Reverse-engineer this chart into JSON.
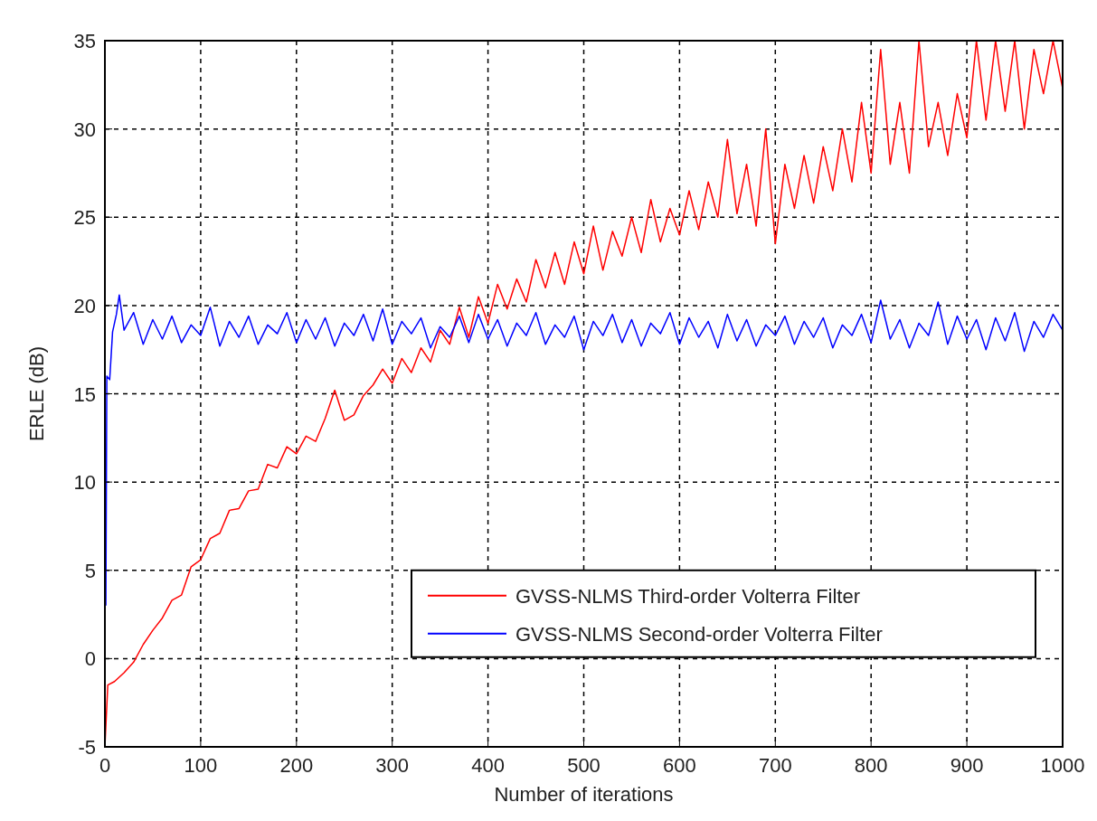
{
  "chart_data": {
    "type": "line",
    "xlabel": "Number of iterations",
    "ylabel": "ERLE (dB)",
    "xlim": [
      0,
      1000
    ],
    "ylim": [
      -5,
      35
    ],
    "xticks": [
      0,
      100,
      200,
      300,
      400,
      500,
      600,
      700,
      800,
      900,
      1000
    ],
    "yticks": [
      -5,
      0,
      5,
      10,
      15,
      20,
      25,
      30,
      35
    ],
    "grid": true,
    "legend": "bottom right",
    "line_style": "solid",
    "marker": "none",
    "series": [
      {
        "name": "GVSS-NLMS Third-order Volterra Filter",
        "color": "#ff0000",
        "x": [
          0,
          3,
          10,
          20,
          30,
          40,
          50,
          60,
          70,
          80,
          90,
          100,
          110,
          120,
          130,
          140,
          150,
          160,
          170,
          180,
          190,
          200,
          210,
          220,
          230,
          240,
          250,
          260,
          270,
          280,
          290,
          300,
          310,
          320,
          330,
          340,
          350,
          360,
          370,
          380,
          390,
          400,
          410,
          420,
          430,
          440,
          450,
          460,
          470,
          480,
          490,
          500,
          510,
          520,
          530,
          540,
          550,
          560,
          570,
          580,
          590,
          600,
          610,
          620,
          630,
          640,
          650,
          660,
          670,
          680,
          690,
          700,
          710,
          720,
          730,
          740,
          750,
          760,
          770,
          780,
          790,
          800,
          810,
          820,
          830,
          840,
          850,
          860,
          870,
          880,
          890,
          900,
          910,
          920,
          930,
          940,
          950,
          960,
          970,
          980,
          990,
          1000
        ],
        "values": [
          -5,
          -1.5,
          -1.3,
          -0.8,
          -0.2,
          0.8,
          1.6,
          2.3,
          3.3,
          3.6,
          5.2,
          5.6,
          6.8,
          7.1,
          8.4,
          8.5,
          9.5,
          9.6,
          11,
          10.8,
          12,
          11.6,
          12.6,
          12.3,
          13.6,
          15.2,
          13.5,
          13.8,
          14.9,
          15.5,
          16.4,
          15.6,
          17,
          16.2,
          17.6,
          16.8,
          18.6,
          17.8,
          19.9,
          18.2,
          20.5,
          19,
          21.2,
          19.8,
          21.5,
          20.2,
          22.6,
          21,
          23,
          21.2,
          23.6,
          21.8,
          24.5,
          22,
          24.2,
          22.8,
          25,
          23,
          26,
          23.6,
          25.5,
          24,
          26.5,
          24.3,
          27,
          25,
          29.4,
          25.2,
          28,
          24.5,
          30,
          23.5,
          28,
          25.5,
          28.5,
          25.8,
          29,
          26.5,
          30,
          27,
          31.5,
          27.5,
          34.5,
          28,
          31.5,
          27.5,
          35,
          29,
          31.5,
          28.5,
          32,
          29.5,
          35,
          30.5,
          35,
          31,
          35,
          30,
          34.5,
          32,
          35,
          32.3
        ]
      },
      {
        "name": "GVSS-NLMS Second-order Volterra Filter",
        "color": "#0000ff",
        "x": [
          1,
          2,
          5,
          8,
          12,
          15,
          20,
          30,
          40,
          50,
          60,
          70,
          80,
          90,
          100,
          110,
          120,
          130,
          140,
          150,
          160,
          170,
          180,
          190,
          200,
          210,
          220,
          230,
          240,
          250,
          260,
          270,
          280,
          290,
          300,
          310,
          320,
          330,
          340,
          350,
          360,
          370,
          380,
          390,
          400,
          410,
          420,
          430,
          440,
          450,
          460,
          470,
          480,
          490,
          500,
          510,
          520,
          530,
          540,
          550,
          560,
          570,
          580,
          590,
          600,
          610,
          620,
          630,
          640,
          650,
          660,
          670,
          680,
          690,
          700,
          710,
          720,
          730,
          740,
          750,
          760,
          770,
          780,
          790,
          800,
          810,
          820,
          830,
          840,
          850,
          860,
          870,
          880,
          890,
          900,
          910,
          920,
          930,
          940,
          950,
          960,
          970,
          980,
          990,
          1000
        ],
        "values": [
          3,
          16,
          15.8,
          18.5,
          19.5,
          20.6,
          18.6,
          19.6,
          17.8,
          19.2,
          18.1,
          19.4,
          17.9,
          18.9,
          18.3,
          19.9,
          17.7,
          19.1,
          18.2,
          19.4,
          17.8,
          18.9,
          18.4,
          19.6,
          17.9,
          19.2,
          18.1,
          19.3,
          17.7,
          19,
          18.3,
          19.5,
          18,
          19.8,
          17.8,
          19.1,
          18.4,
          19.3,
          17.6,
          18.8,
          18.2,
          19.4,
          17.9,
          19.5,
          18.1,
          19.2,
          17.7,
          19,
          18.3,
          19.6,
          17.8,
          18.9,
          18.2,
          19.4,
          17.5,
          19.1,
          18.3,
          19.5,
          17.9,
          19.2,
          17.7,
          19,
          18.4,
          19.6,
          17.8,
          19.3,
          18.2,
          19.1,
          17.6,
          19.5,
          18,
          19.2,
          17.7,
          18.9,
          18.3,
          19.4,
          17.8,
          19.1,
          18.2,
          19.3,
          17.6,
          18.9,
          18.3,
          19.5,
          17.9,
          20.3,
          18.1,
          19.2,
          17.6,
          19,
          18.3,
          20.2,
          17.8,
          19.4,
          18.1,
          19.2,
          17.5,
          19.3,
          18,
          19.6,
          17.4,
          19.1,
          18.2,
          19.5,
          18.6
        ]
      }
    ]
  }
}
